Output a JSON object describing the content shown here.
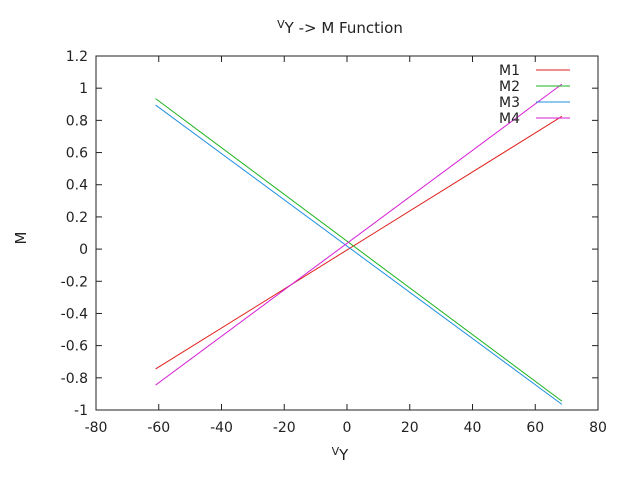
{
  "chart_data": {
    "type": "line",
    "title": {
      "prefix": "V",
      "sub": "Y",
      "rest": " -> M Function"
    },
    "xlabel": {
      "prefix": "V",
      "sub": "Y"
    },
    "ylabel": "M",
    "xlim": [
      -80,
      80
    ],
    "ylim": [
      -1,
      1.2
    ],
    "xticks": [
      -80,
      -60,
      -40,
      -20,
      0,
      20,
      40,
      60,
      80
    ],
    "yticks": [
      -1,
      -0.8,
      -0.6,
      -0.4,
      -0.2,
      0,
      0.2,
      0.4,
      0.6,
      0.8,
      1,
      1.2
    ],
    "xtick_labels": [
      "-80",
      "-60",
      "-40",
      "-20",
      "0",
      "20",
      "40",
      "60",
      "80"
    ],
    "ytick_labels": [
      "-1",
      "-0.8",
      "-0.6",
      "-0.4",
      "-0.2",
      "0",
      "0.2",
      "0.4",
      "0.6",
      "0.8",
      "1",
      "1.2"
    ],
    "grid": false,
    "legend_position": "top-right",
    "series": [
      {
        "name": "M1",
        "color": "#e0201b",
        "x": [
          -61,
          68.5
        ],
        "y": [
          -0.745,
          0.825
        ]
      },
      {
        "name": "M2",
        "color": "#1db31d",
        "x": [
          -61,
          68.5
        ],
        "y": [
          0.935,
          -0.945
        ]
      },
      {
        "name": "M3",
        "color": "#1f8fe0",
        "x": [
          -61,
          68.5
        ],
        "y": [
          0.895,
          -0.965
        ]
      },
      {
        "name": "M4",
        "color": "#d61fd6",
        "x": [
          -61,
          68.5
        ],
        "y": [
          -0.845,
          1.025
        ]
      }
    ]
  }
}
